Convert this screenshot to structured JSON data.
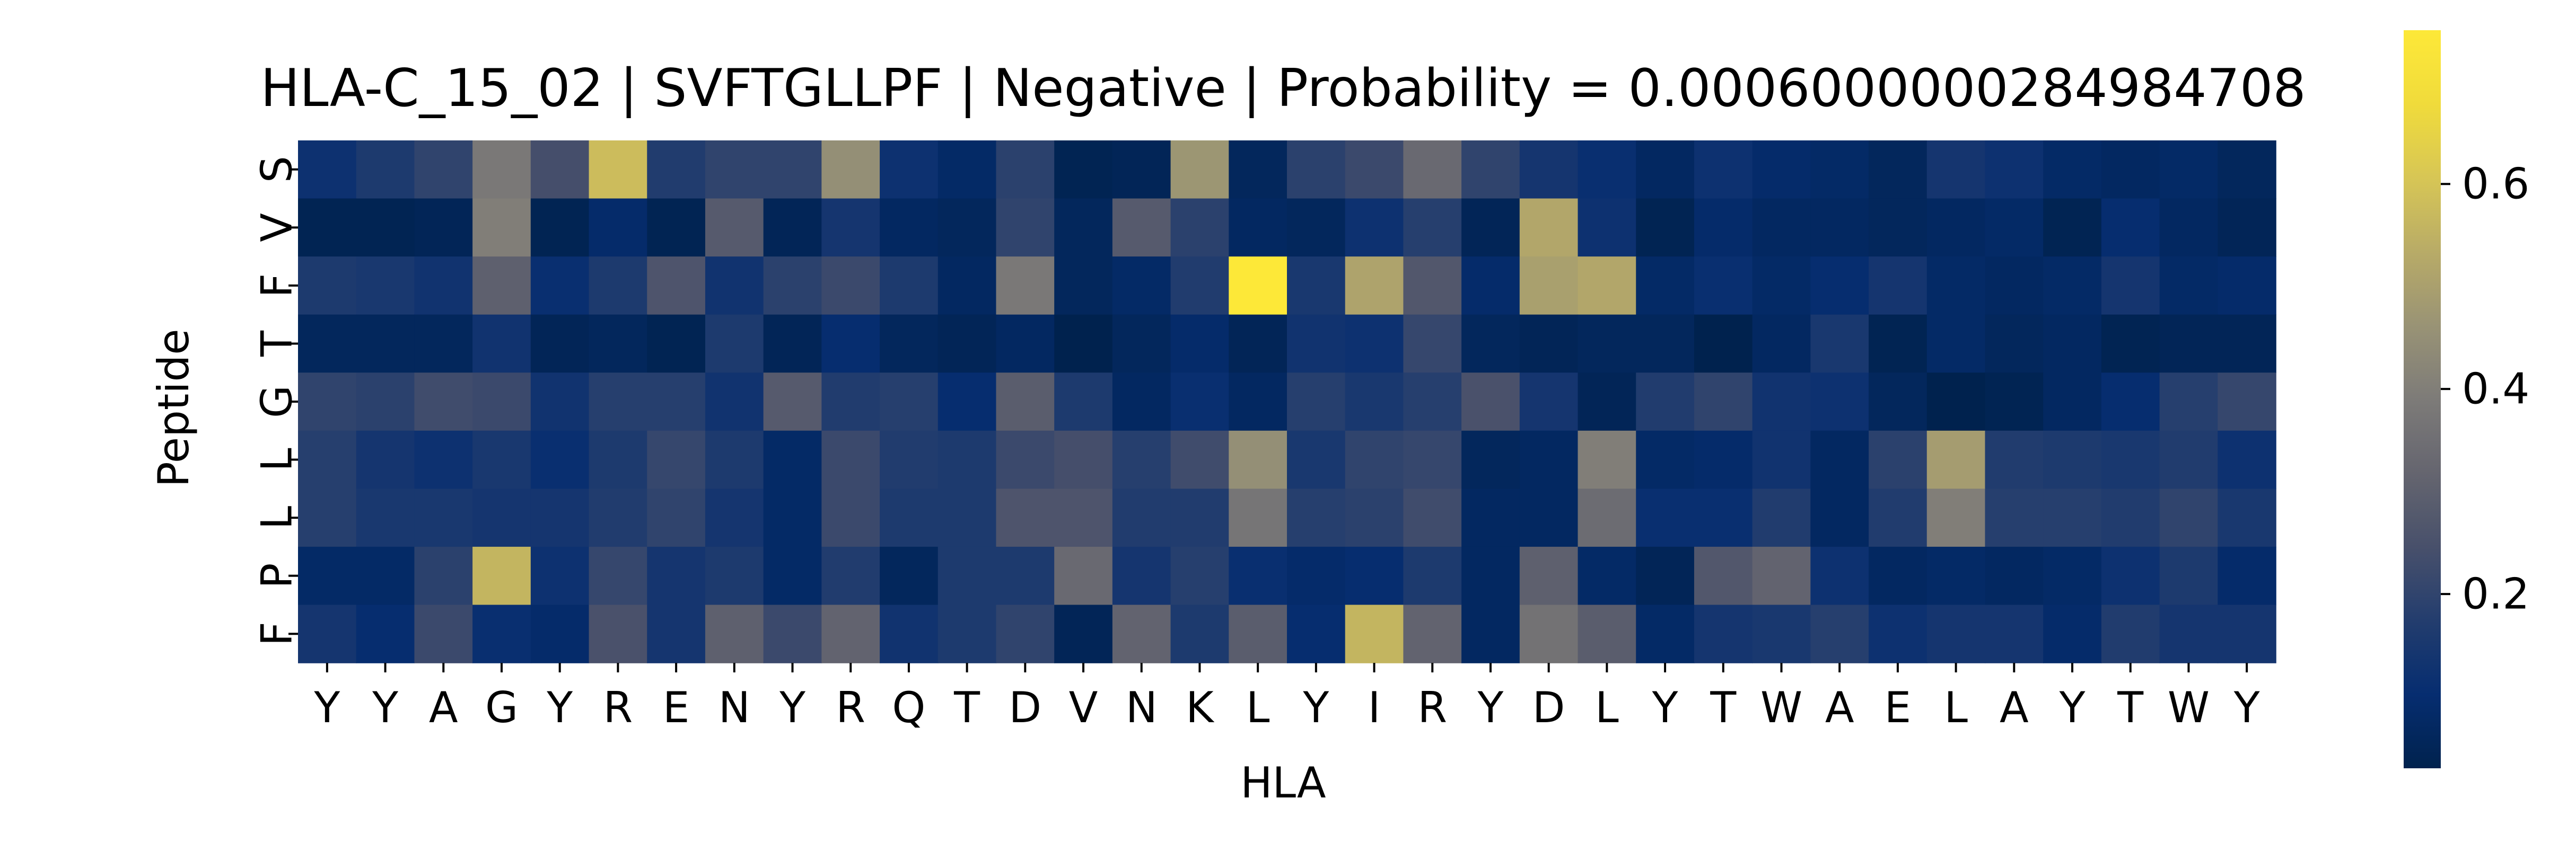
{
  "chart_data": {
    "type": "heatmap",
    "title": "HLA-C_15_02 | SVFTGLLPF | Negative | Probability = 0.0006000000284984708",
    "xlabel": "HLA",
    "ylabel": "Peptide",
    "x_categories": [
      "Y",
      "Y",
      "A",
      "G",
      "Y",
      "R",
      "E",
      "N",
      "Y",
      "R",
      "Q",
      "T",
      "D",
      "V",
      "N",
      "K",
      "L",
      "Y",
      "I",
      "R",
      "Y",
      "D",
      "L",
      "Y",
      "T",
      "W",
      "A",
      "E",
      "L",
      "A",
      "Y",
      "T",
      "W",
      "Y"
    ],
    "y_categories": [
      "S",
      "V",
      "F",
      "T",
      "G",
      "L",
      "L",
      "P",
      "F"
    ],
    "values": [
      [
        0.12,
        0.16,
        0.2,
        0.38,
        0.24,
        0.58,
        0.17,
        0.2,
        0.2,
        0.45,
        0.12,
        0.08,
        0.19,
        0.04,
        0.05,
        0.47,
        0.06,
        0.19,
        0.22,
        0.33,
        0.2,
        0.14,
        0.11,
        0.07,
        0.12,
        0.09,
        0.08,
        0.06,
        0.14,
        0.12,
        0.08,
        0.07,
        0.08,
        0.06
      ],
      [
        0.04,
        0.04,
        0.05,
        0.4,
        0.04,
        0.09,
        0.04,
        0.28,
        0.05,
        0.14,
        0.07,
        0.06,
        0.2,
        0.06,
        0.28,
        0.19,
        0.07,
        0.06,
        0.12,
        0.18,
        0.05,
        0.52,
        0.12,
        0.04,
        0.09,
        0.07,
        0.07,
        0.06,
        0.07,
        0.08,
        0.04,
        0.1,
        0.07,
        0.05
      ],
      [
        0.16,
        0.15,
        0.13,
        0.3,
        0.11,
        0.16,
        0.26,
        0.13,
        0.19,
        0.22,
        0.16,
        0.07,
        0.38,
        0.06,
        0.08,
        0.17,
        0.75,
        0.15,
        0.51,
        0.27,
        0.09,
        0.5,
        0.52,
        0.08,
        0.11,
        0.08,
        0.1,
        0.14,
        0.08,
        0.07,
        0.08,
        0.14,
        0.08,
        0.09
      ],
      [
        0.06,
        0.06,
        0.06,
        0.13,
        0.05,
        0.06,
        0.04,
        0.16,
        0.05,
        0.1,
        0.06,
        0.05,
        0.07,
        0.03,
        0.06,
        0.09,
        0.05,
        0.13,
        0.12,
        0.21,
        0.06,
        0.05,
        0.06,
        0.06,
        0.03,
        0.07,
        0.15,
        0.04,
        0.08,
        0.06,
        0.07,
        0.04,
        0.05,
        0.05
      ],
      [
        0.2,
        0.19,
        0.23,
        0.22,
        0.13,
        0.18,
        0.18,
        0.13,
        0.28,
        0.17,
        0.18,
        0.1,
        0.29,
        0.16,
        0.07,
        0.11,
        0.07,
        0.18,
        0.15,
        0.18,
        0.25,
        0.14,
        0.05,
        0.17,
        0.2,
        0.13,
        0.12,
        0.06,
        0.03,
        0.04,
        0.07,
        0.1,
        0.18,
        0.21
      ],
      [
        0.18,
        0.14,
        0.12,
        0.15,
        0.11,
        0.16,
        0.21,
        0.16,
        0.08,
        0.22,
        0.17,
        0.16,
        0.22,
        0.24,
        0.18,
        0.23,
        0.45,
        0.15,
        0.2,
        0.21,
        0.06,
        0.07,
        0.4,
        0.08,
        0.09,
        0.13,
        0.07,
        0.19,
        0.49,
        0.17,
        0.16,
        0.15,
        0.17,
        0.12
      ],
      [
        0.18,
        0.15,
        0.15,
        0.14,
        0.14,
        0.17,
        0.2,
        0.14,
        0.08,
        0.22,
        0.16,
        0.16,
        0.26,
        0.26,
        0.17,
        0.17,
        0.37,
        0.18,
        0.19,
        0.23,
        0.07,
        0.07,
        0.34,
        0.11,
        0.11,
        0.17,
        0.07,
        0.17,
        0.4,
        0.18,
        0.18,
        0.17,
        0.2,
        0.15
      ],
      [
        0.08,
        0.08,
        0.19,
        0.56,
        0.12,
        0.21,
        0.14,
        0.16,
        0.08,
        0.17,
        0.06,
        0.16,
        0.16,
        0.33,
        0.14,
        0.18,
        0.11,
        0.09,
        0.1,
        0.16,
        0.07,
        0.3,
        0.08,
        0.05,
        0.27,
        0.31,
        0.12,
        0.07,
        0.08,
        0.07,
        0.08,
        0.12,
        0.16,
        0.09
      ],
      [
        0.14,
        0.1,
        0.22,
        0.11,
        0.09,
        0.25,
        0.14,
        0.3,
        0.22,
        0.31,
        0.13,
        0.16,
        0.2,
        0.05,
        0.31,
        0.16,
        0.29,
        0.1,
        0.56,
        0.31,
        0.07,
        0.36,
        0.29,
        0.08,
        0.14,
        0.15,
        0.18,
        0.12,
        0.14,
        0.14,
        0.09,
        0.17,
        0.14,
        0.14
      ]
    ],
    "colormap": "cividis",
    "colorbar": {
      "min": 0.03,
      "max": 0.75,
      "ticks": [
        0.2,
        0.4,
        0.6
      ]
    },
    "grid": false,
    "legend": "none"
  }
}
